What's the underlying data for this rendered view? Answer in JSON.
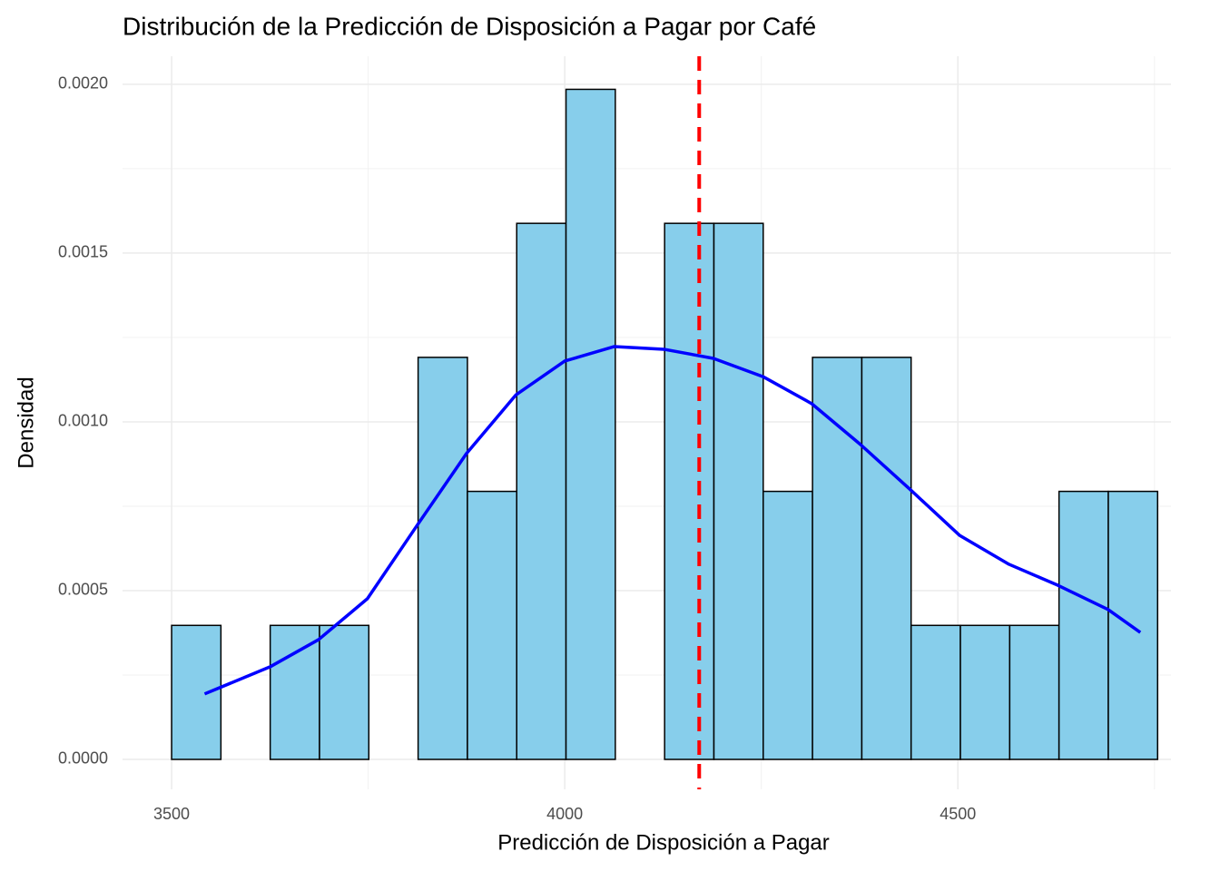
{
  "chart_data": {
    "type": "histogram",
    "title": "Distribución de la Predicción de Disposición a Pagar por Café",
    "x_label": "Predicción de Disposición a Pagar",
    "y_label": "Densidad",
    "bins": [
      3500,
      3562.7,
      3625.4,
      3688.1,
      3750.8,
      3813.5,
      3876.2,
      3938.9,
      4001.6,
      4064.3,
      4127,
      4189.7,
      4252.4,
      4315.1,
      4377.8,
      4440.5,
      4503.2,
      4565.9,
      4628.6,
      4691.3,
      4754
    ],
    "values": [
      0.000397,
      0,
      0.000397,
      0.000397,
      0,
      0.001191,
      0.000794,
      0.001588,
      0.001985,
      0,
      0.001588,
      0.001588,
      0.000794,
      0.001191,
      0.001191,
      0.000397,
      0.000397,
      0.000397,
      0.000794,
      0.000794
    ],
    "color": "#87ceeb",
    "edgecolor": "#000000",
    "density": {
      "x": [
        3542,
        3625,
        3687,
        3749,
        3813,
        3875,
        3938,
        4000,
        4063,
        4126,
        4189,
        4252,
        4314,
        4376,
        4440,
        4502,
        4565,
        4627,
        4691,
        4732
      ],
      "values": [
        0.000194,
        0.000274,
        0.000355,
        0.000476,
        0.000696,
        0.000906,
        0.00108,
        0.00118,
        0.001223,
        0.001215,
        0.001188,
        0.001134,
        0.001054,
        0.000933,
        0.000798,
        0.000664,
        0.000578,
        0.000516,
        0.000444,
        0.000376
      ],
      "color": "#0000ff"
    },
    "vline": {
      "value": 4171,
      "color": "#ff0000"
    },
    "xlim": [
      3437.6,
      4771
    ],
    "ylim": [
      -8.87e-05,
      0.002083
    ],
    "xticks": [
      3500,
      4000,
      4500
    ],
    "yticks": [
      {
        "value": 0,
        "label": "0.0000"
      },
      {
        "value": 0.0005,
        "label": "0.0005"
      },
      {
        "value": 0.001,
        "label": "0.0010"
      },
      {
        "value": 0.0015,
        "label": "0.0015"
      },
      {
        "value": 0.002,
        "label": "0.0020"
      }
    ],
    "x_minor_ticks": [
      3750,
      4250,
      4750
    ],
    "y_minor_ticks": [
      0.00025,
      0.00075,
      0.00125,
      0.00175
    ],
    "grid": true
  }
}
